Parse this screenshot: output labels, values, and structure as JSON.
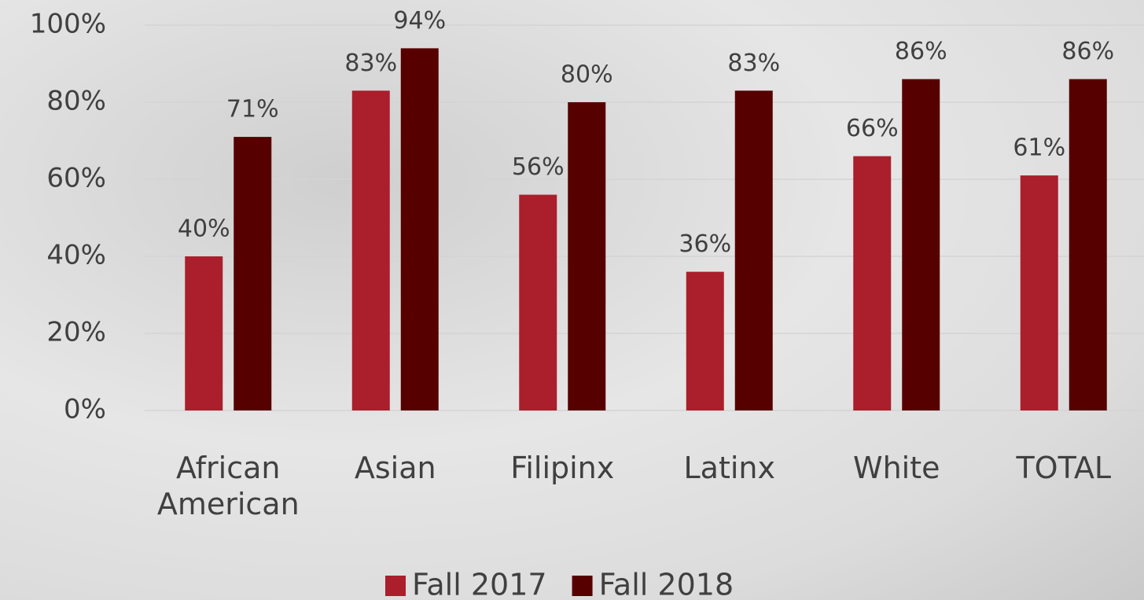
{
  "chart_data": {
    "type": "bar",
    "categories": [
      "African American",
      "Asian",
      "Filipinx",
      "Latinx",
      "White",
      "TOTAL"
    ],
    "series": [
      {
        "name": "Fall 2017",
        "color": "#ab1e2c",
        "values": [
          40,
          83,
          56,
          36,
          66,
          61
        ],
        "value_labels": [
          "40%",
          "83%",
          "56%",
          "36%",
          "66%",
          "61%"
        ]
      },
      {
        "name": "Fall 2018",
        "color": "#560000",
        "values": [
          71,
          94,
          80,
          83,
          86,
          86
        ],
        "value_labels": [
          "71%",
          "94%",
          "80%",
          "83%",
          "86%",
          "86%"
        ]
      }
    ],
    "ylim": [
      0,
      100
    ],
    "yticks": [
      {
        "value": 0,
        "label": "0%"
      },
      {
        "value": 20,
        "label": "20%"
      },
      {
        "value": 40,
        "label": "40%"
      },
      {
        "value": 60,
        "label": "60%"
      },
      {
        "value": 80,
        "label": "80%"
      },
      {
        "value": 100,
        "label": "100%"
      }
    ],
    "grid": true,
    "legend": "bottom"
  }
}
